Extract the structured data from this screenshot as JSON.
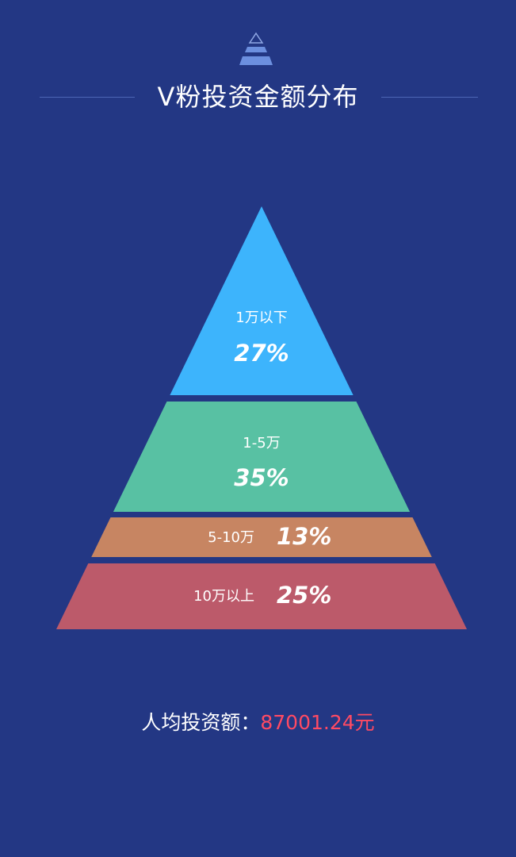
{
  "title": "V粉投资金额分布",
  "chart_data": {
    "type": "pyramid",
    "title": "V粉投资金额分布",
    "order": "top-to-bottom",
    "tiers": [
      {
        "label": "1万以下",
        "value": "27%",
        "color": "#3db4fc"
      },
      {
        "label": "1-5万",
        "value": "35%",
        "color": "#58c1a3"
      },
      {
        "label": "5-10万",
        "value": "13%",
        "color": "#c78562"
      },
      {
        "label": "10万以上",
        "value": "25%",
        "color": "#bc5a6a"
      }
    ]
  },
  "summary": {
    "label": "人均投资额：",
    "value": "87001.24元"
  },
  "colors": {
    "background": "#233784",
    "accent": "#ff4a63",
    "icon": "#6c8fdf"
  },
  "icons": {
    "header": "pyramid-icon"
  }
}
